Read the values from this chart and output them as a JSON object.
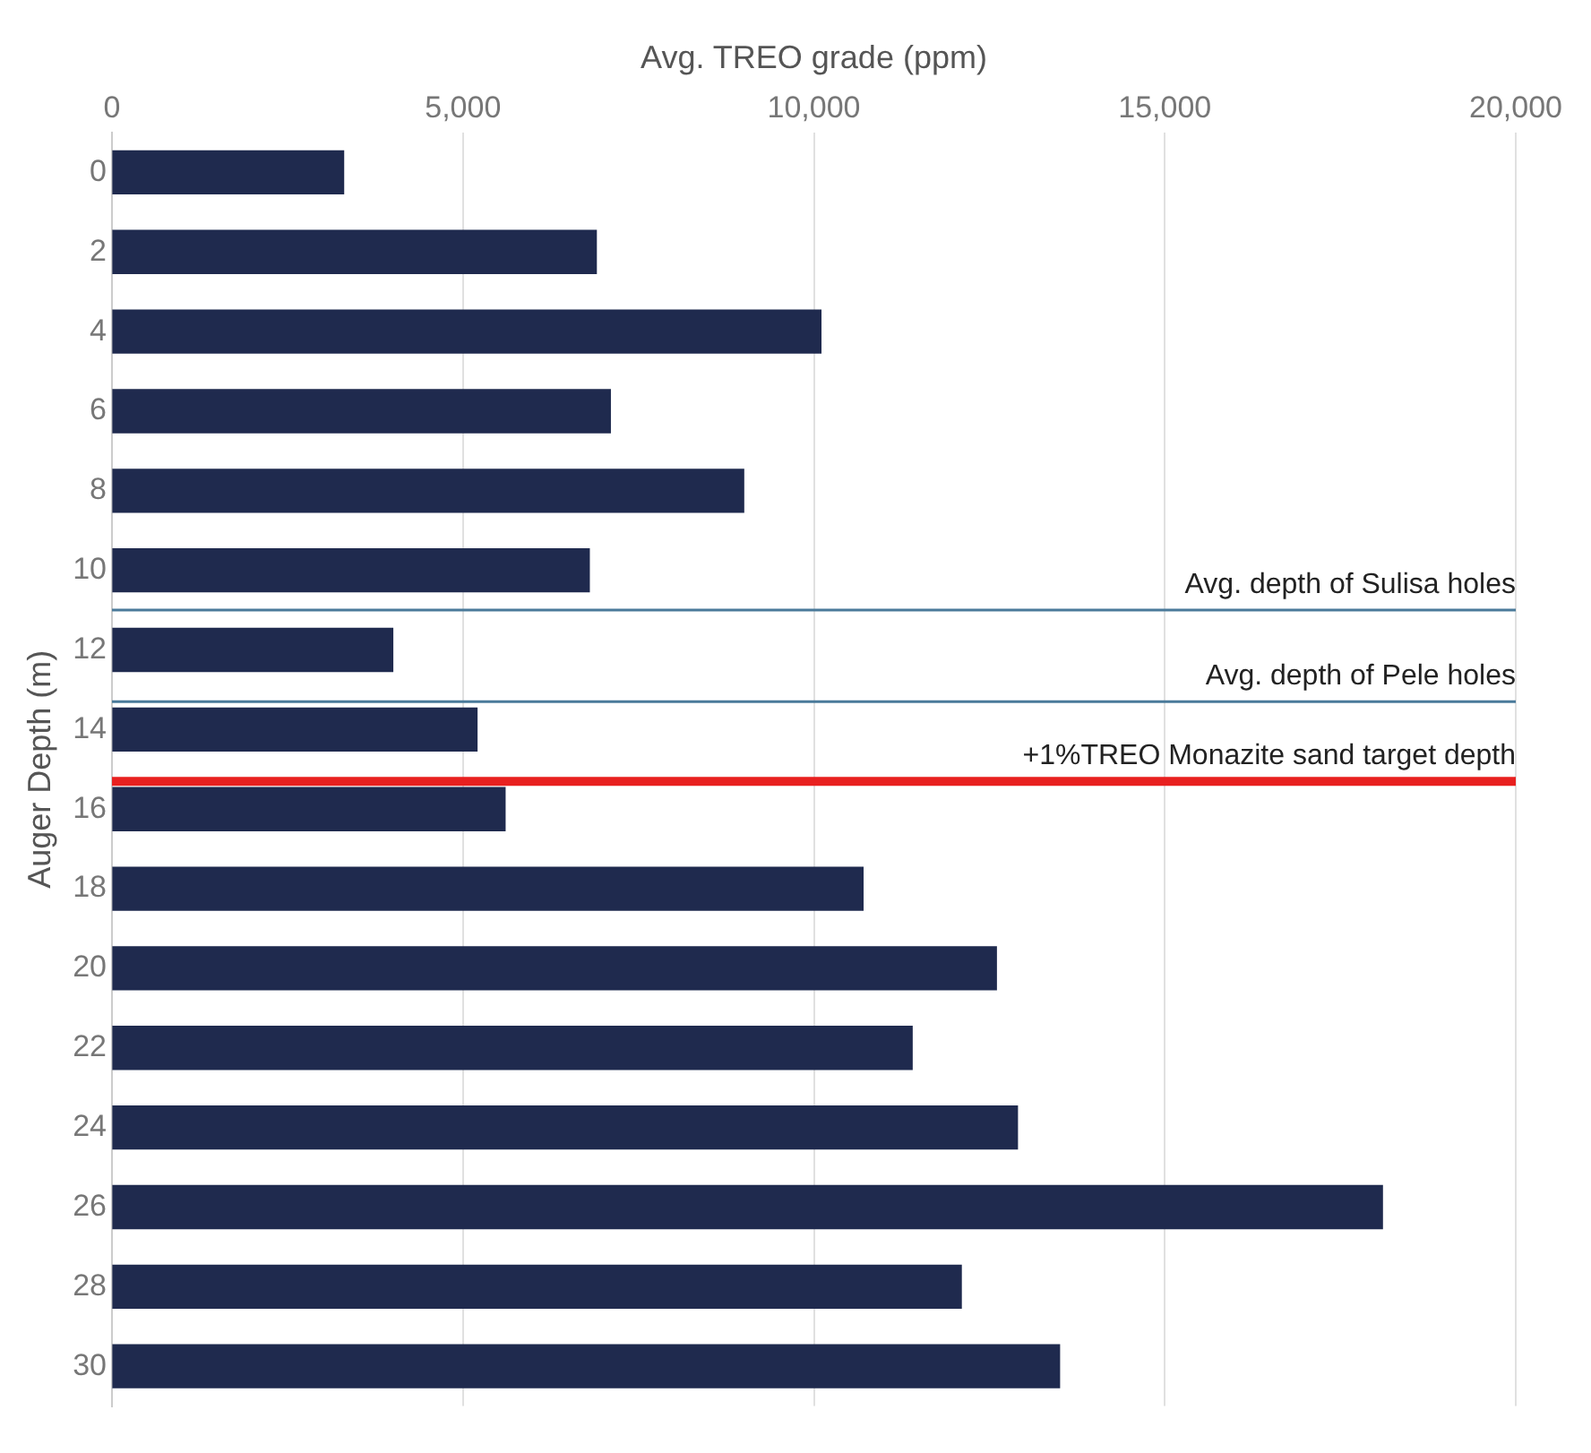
{
  "chart_data": {
    "type": "bar",
    "orientation": "horizontal",
    "xlabel": "Avg. TREO grade (ppm)",
    "ylabel": "Auger Depth (m)",
    "x": [
      0,
      2,
      4,
      6,
      8,
      10,
      12,
      14,
      16,
      18,
      20,
      22,
      24,
      26,
      28,
      30
    ],
    "values": [
      3300,
      6900,
      10100,
      7100,
      9000,
      6800,
      4000,
      5200,
      5600,
      10700,
      12600,
      11400,
      12900,
      18100,
      12100,
      13500
    ],
    "color": "#1f2a4e",
    "xlim": [
      0,
      20000
    ],
    "xticks": [
      {
        "value": 0,
        "label": "0"
      },
      {
        "value": 5000,
        "label": "5,000"
      },
      {
        "value": 10000,
        "label": "10,000"
      },
      {
        "value": 15000,
        "label": "15,000"
      },
      {
        "value": 20000,
        "label": "20,000"
      }
    ],
    "ylim": [
      31,
      -1
    ],
    "yticks": [
      0,
      2,
      4,
      6,
      8,
      10,
      12,
      14,
      16,
      18,
      20,
      22,
      24,
      26,
      28,
      30
    ],
    "grid": "x",
    "legend": false,
    "ref_lines": [
      {
        "axis": "y",
        "value": 11,
        "label": "Avg. depth of Sulisa holes",
        "color": "#4a7a9a"
      },
      {
        "axis": "y",
        "value": 13.3,
        "label": "Avg. depth of Pele holes",
        "color": "#4a7a9a"
      },
      {
        "axis": "y",
        "value": 15.3,
        "label": "+1%TREO Monazite sand target depth",
        "color": "#e8201f"
      }
    ]
  }
}
